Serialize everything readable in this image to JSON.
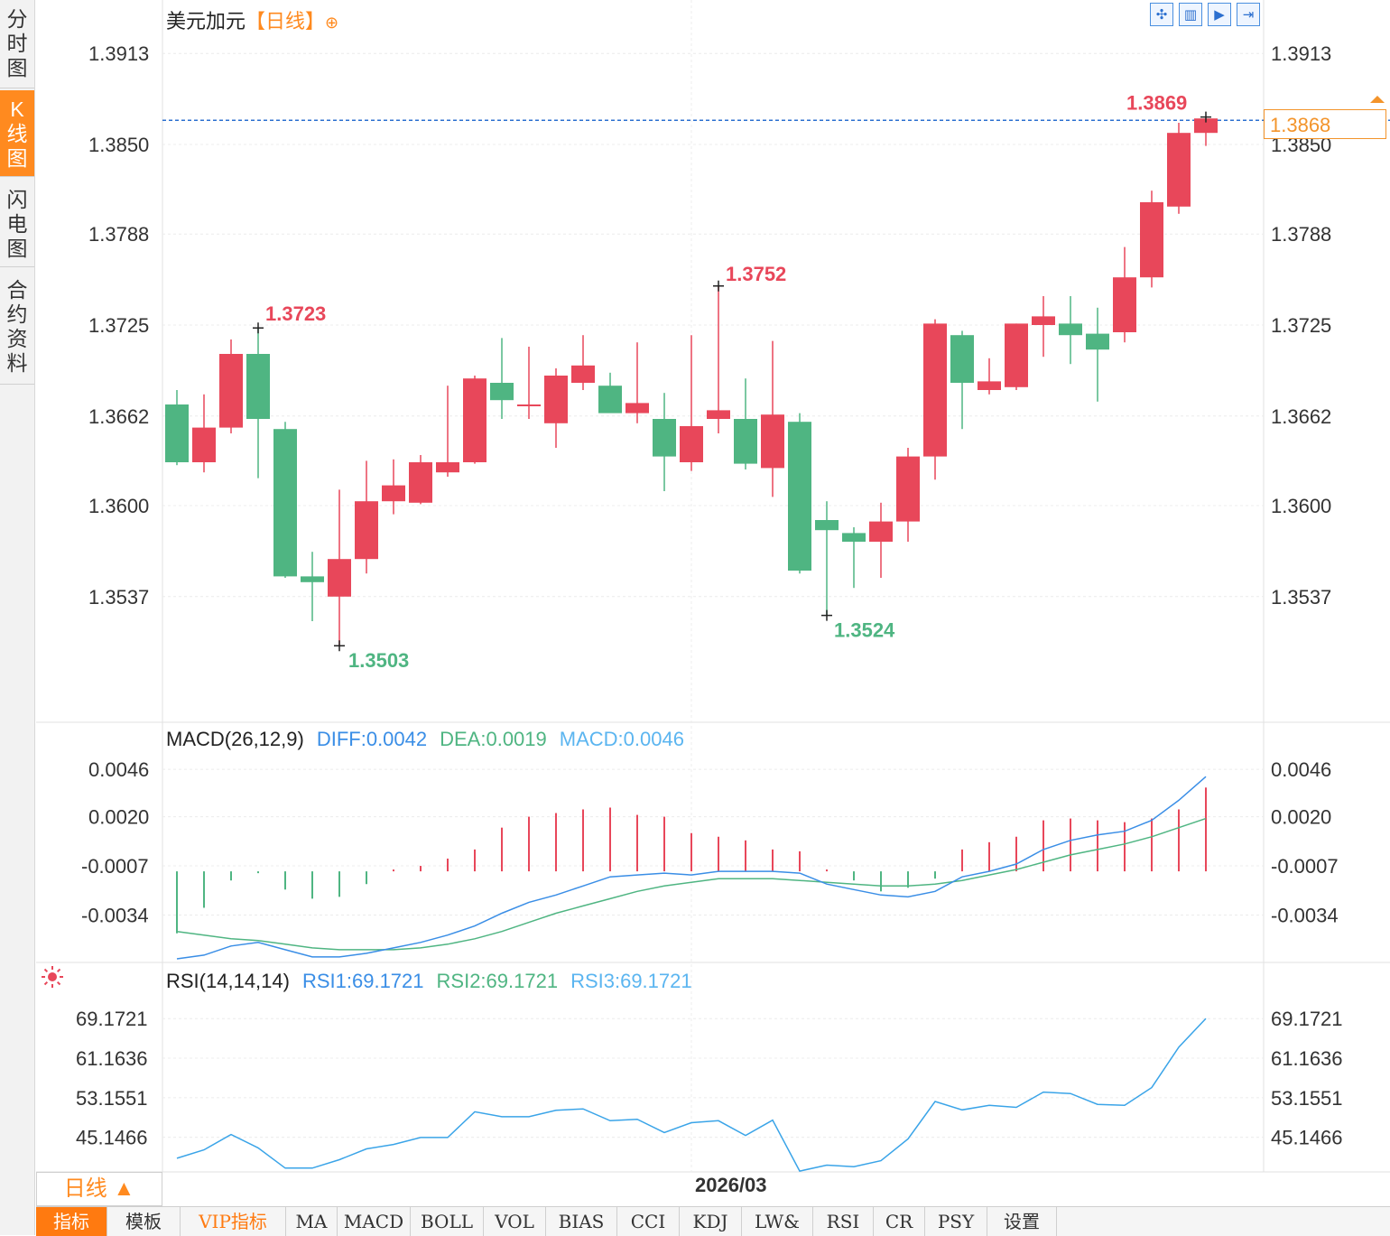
{
  "side_tabs": [
    {
      "label": "分时图",
      "active": false
    },
    {
      "label": "K线图",
      "active": true
    },
    {
      "label": "闪电图",
      "active": false
    },
    {
      "label": "合约资料",
      "active": false
    }
  ],
  "header": {
    "title": "美元加元",
    "period": "【日线】",
    "toolbar_icons": [
      "zoom-in-icon",
      "kline-icon",
      "play-icon",
      "forward-icon"
    ]
  },
  "current_price": "1.3868",
  "markers": {
    "high_label": "1.3869",
    "peaks": [
      {
        "value": "1.3723",
        "color": "#e8475a"
      },
      {
        "value": "1.3752",
        "color": "#e8475a"
      },
      {
        "value": "1.3503",
        "color": "#4fb582"
      },
      {
        "value": "1.3524",
        "color": "#4fb582"
      }
    ]
  },
  "price_axis": [
    "1.3913",
    "1.3850",
    "1.3788",
    "1.3725",
    "1.3662",
    "1.3600",
    "1.3537"
  ],
  "macd": {
    "title": "MACD(26,12,9)",
    "diff": "DIFF:0.0042",
    "dea": "DEA:0.0019",
    "macd": "MACD:0.0046",
    "axis": [
      "0.0046",
      "0.0020",
      "-0.0007",
      "-0.0034"
    ]
  },
  "rsi": {
    "title": "RSI(14,14,14)",
    "rsi1": "RSI1:69.1721",
    "rsi2": "RSI2:69.1721",
    "rsi3": "RSI3:69.1721",
    "axis": [
      "69.1721",
      "61.1636",
      "53.1551",
      "45.1466"
    ]
  },
  "date_label": "2026/03",
  "period_selector": "日线 ▲",
  "bottom_tabs": [
    {
      "label": "指标",
      "active": true,
      "vip": false
    },
    {
      "label": "模板",
      "active": false,
      "vip": false
    },
    {
      "label": "VIP指标",
      "active": false,
      "vip": true
    },
    {
      "label": "MA",
      "active": false,
      "vip": false
    },
    {
      "label": "MACD",
      "active": false,
      "vip": false
    },
    {
      "label": "BOLL",
      "active": false,
      "vip": false
    },
    {
      "label": "VOL",
      "active": false,
      "vip": false
    },
    {
      "label": "BIAS",
      "active": false,
      "vip": false
    },
    {
      "label": "CCI",
      "active": false,
      "vip": false
    },
    {
      "label": "KDJ",
      "active": false,
      "vip": false
    },
    {
      "label": "LW&",
      "active": false,
      "vip": false
    },
    {
      "label": "RSI",
      "active": false,
      "vip": false
    },
    {
      "label": "CR",
      "active": false,
      "vip": false
    },
    {
      "label": "PSY",
      "active": false,
      "vip": false
    },
    {
      "label": "设置",
      "active": false,
      "vip": false
    }
  ],
  "colors": {
    "up": "#e8475a",
    "down": "#4fb582",
    "accent": "#ff8a1f",
    "diff": "#3a8ee6",
    "dea": "#4fb582",
    "macd_label": "#5bb5f0"
  },
  "chart_data": {
    "type": "candlestick",
    "price_ylim": [
      1.3475,
      1.3925
    ],
    "candles": [
      {
        "o": 1.367,
        "h": 1.368,
        "l": 1.3628,
        "c": 1.363
      },
      {
        "o": 1.363,
        "h": 1.3677,
        "l": 1.3623,
        "c": 1.3654
      },
      {
        "o": 1.3654,
        "h": 1.3715,
        "l": 1.365,
        "c": 1.3705
      },
      {
        "o": 1.3705,
        "h": 1.3723,
        "l": 1.3619,
        "c": 1.366
      },
      {
        "o": 1.3653,
        "h": 1.3658,
        "l": 1.355,
        "c": 1.3551
      },
      {
        "o": 1.3551,
        "h": 1.3568,
        "l": 1.352,
        "c": 1.3547
      },
      {
        "o": 1.3537,
        "h": 1.3611,
        "l": 1.3503,
        "c": 1.3563
      },
      {
        "o": 1.3563,
        "h": 1.3631,
        "l": 1.3553,
        "c": 1.3603
      },
      {
        "o": 1.3603,
        "h": 1.3632,
        "l": 1.3594,
        "c": 1.3614
      },
      {
        "o": 1.3602,
        "h": 1.3635,
        "l": 1.3601,
        "c": 1.363
      },
      {
        "o": 1.3623,
        "h": 1.3683,
        "l": 1.362,
        "c": 1.363
      },
      {
        "o": 1.363,
        "h": 1.369,
        "l": 1.3629,
        "c": 1.3688
      },
      {
        "o": 1.3685,
        "h": 1.3716,
        "l": 1.366,
        "c": 1.3673
      },
      {
        "o": 1.367,
        "h": 1.371,
        "l": 1.366,
        "c": 1.367
      },
      {
        "o": 1.3657,
        "h": 1.3695,
        "l": 1.364,
        "c": 1.369
      },
      {
        "o": 1.3685,
        "h": 1.3718,
        "l": 1.368,
        "c": 1.3697
      },
      {
        "o": 1.3683,
        "h": 1.3692,
        "l": 1.3665,
        "c": 1.3664
      },
      {
        "o": 1.3664,
        "h": 1.3713,
        "l": 1.3657,
        "c": 1.3671
      },
      {
        "o": 1.366,
        "h": 1.3678,
        "l": 1.361,
        "c": 1.3634
      },
      {
        "o": 1.363,
        "h": 1.3718,
        "l": 1.3624,
        "c": 1.3655
      },
      {
        "o": 1.366,
        "h": 1.3752,
        "l": 1.365,
        "c": 1.3666
      },
      {
        "o": 1.366,
        "h": 1.3688,
        "l": 1.3625,
        "c": 1.3629
      },
      {
        "o": 1.3626,
        "h": 1.3714,
        "l": 1.3606,
        "c": 1.3663
      },
      {
        "o": 1.3658,
        "h": 1.3664,
        "l": 1.3553,
        "c": 1.3555
      },
      {
        "o": 1.359,
        "h": 1.3603,
        "l": 1.3524,
        "c": 1.3583
      },
      {
        "o": 1.3581,
        "h": 1.3585,
        "l": 1.3543,
        "c": 1.3575
      },
      {
        "o": 1.3575,
        "h": 1.3602,
        "l": 1.355,
        "c": 1.3589
      },
      {
        "o": 1.3589,
        "h": 1.364,
        "l": 1.3575,
        "c": 1.3634
      },
      {
        "o": 1.3634,
        "h": 1.3729,
        "l": 1.3618,
        "c": 1.3726
      },
      {
        "o": 1.3718,
        "h": 1.3721,
        "l": 1.3653,
        "c": 1.3685
      },
      {
        "o": 1.368,
        "h": 1.3702,
        "l": 1.3677,
        "c": 1.3686
      },
      {
        "o": 1.3682,
        "h": 1.3726,
        "l": 1.368,
        "c": 1.3726
      },
      {
        "o": 1.3725,
        "h": 1.3745,
        "l": 1.3703,
        "c": 1.3731
      },
      {
        "o": 1.3726,
        "h": 1.3745,
        "l": 1.3698,
        "c": 1.3718
      },
      {
        "o": 1.3719,
        "h": 1.3737,
        "l": 1.3672,
        "c": 1.3708
      },
      {
        "o": 1.372,
        "h": 1.3779,
        "l": 1.3713,
        "c": 1.3758
      },
      {
        "o": 1.3758,
        "h": 1.3818,
        "l": 1.3751,
        "c": 1.381
      },
      {
        "o": 1.3807,
        "h": 1.3865,
        "l": 1.3802,
        "c": 1.3858
      },
      {
        "o": 1.3858,
        "h": 1.3869,
        "l": 1.3849,
        "c": 1.3868
      }
    ],
    "macd_ylim": [
      -0.006,
      0.0052
    ],
    "macd_hist": [
      -0.0034,
      -0.002,
      -0.0005,
      -0.0001,
      -0.001,
      -0.0015,
      -0.0014,
      -0.0007,
      0.0001,
      0.0003,
      0.0007,
      0.0012,
      0.0024,
      0.003,
      0.0032,
      0.0034,
      0.0035,
      0.0031,
      0.003,
      0.0021,
      0.0019,
      0.0017,
      0.0012,
      0.0011,
      0.0001,
      -0.0005,
      -0.0011,
      -0.0009,
      -0.0004,
      0.0012,
      0.0016,
      0.0019,
      0.0028,
      0.0029,
      0.0028,
      0.0027,
      0.0029,
      0.0034,
      0.0046
    ],
    "diff": [
      -0.0058,
      -0.0056,
      -0.0051,
      -0.0049,
      -0.0053,
      -0.0057,
      -0.0057,
      -0.0055,
      -0.0052,
      -0.0049,
      -0.0045,
      -0.004,
      -0.0033,
      -0.0027,
      -0.0023,
      -0.0018,
      -0.0013,
      -0.0012,
      -0.0011,
      -0.0012,
      -0.001,
      -0.001,
      -0.001,
      -0.0011,
      -0.0017,
      -0.002,
      -0.0023,
      -0.0024,
      -0.0021,
      -0.0013,
      -0.001,
      -0.0006,
      0.0002,
      0.0007,
      0.001,
      0.0012,
      0.0018,
      0.0029,
      0.0042
    ],
    "dea": [
      -0.0043,
      -0.0045,
      -0.0047,
      -0.0048,
      -0.005,
      -0.0052,
      -0.0053,
      -0.0053,
      -0.0053,
      -0.0052,
      -0.005,
      -0.0047,
      -0.0043,
      -0.0038,
      -0.0033,
      -0.0029,
      -0.0025,
      -0.0021,
      -0.0018,
      -0.0016,
      -0.0014,
      -0.0014,
      -0.0014,
      -0.0015,
      -0.0016,
      -0.0017,
      -0.0018,
      -0.0018,
      -0.0017,
      -0.0015,
      -0.0012,
      -0.0009,
      -0.0005,
      -0.0001,
      0.0002,
      0.0005,
      0.0009,
      0.0014,
      0.0019
    ],
    "rsi_ylim": [
      38.5,
      72.5
    ],
    "rsi": [
      40.9,
      42.6,
      45.7,
      43.0,
      38.9,
      38.9,
      40.6,
      42.8,
      43.7,
      45.1,
      45.1,
      50.3,
      49.3,
      49.3,
      50.6,
      50.9,
      48.5,
      48.8,
      46.1,
      48.1,
      48.5,
      45.5,
      48.6,
      38.3,
      39.5,
      39.2,
      40.4,
      44.8,
      52.4,
      50.7,
      51.6,
      51.2,
      54.3,
      54.0,
      51.8,
      51.6,
      55.2,
      63.4,
      69.2
    ]
  }
}
